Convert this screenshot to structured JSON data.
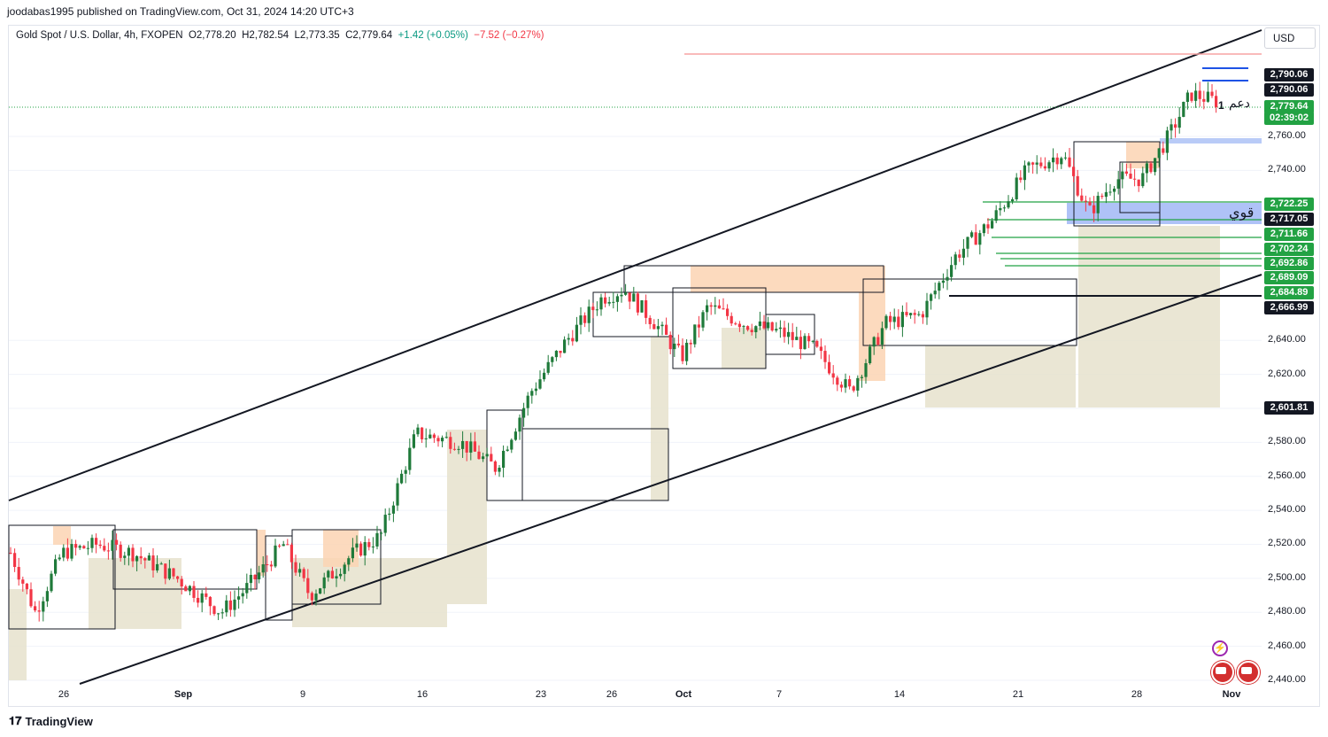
{
  "header": {
    "published_by": "joodabas1995 published on TradingView.com, Oct 31, 2024 14:20 UTC+3"
  },
  "legend": {
    "symbol": "Gold Spot / U.S. Dollar, 4h, FXOPEN",
    "open": "O2,778.20",
    "high": "H2,782.54",
    "low": "L2,773.35",
    "close": "C2,779.64",
    "change": "+1.42 (+0.05%)",
    "change2": "−7.52 (−0.27%)"
  },
  "currency": "USD",
  "footer": {
    "brand": "TradingView"
  },
  "annotations": {
    "support": "دعم",
    "strong": "قوي",
    "marker": "1"
  },
  "colors": {
    "up": "#089981",
    "down": "#f23645",
    "up_candle": "#1f7a3a",
    "zone_supply": "#fbd3b3",
    "zone_demand": "#e6e2cc",
    "blue_zone": "#6d8ff0",
    "green_level": "#22a243"
  },
  "chart_data": {
    "type": "candlestick",
    "title": "Gold Spot / U.S. Dollar, 4h, FXOPEN",
    "ylim": [
      2440,
      2810
    ],
    "y_ticks": [
      "2,440.00",
      "2,460.00",
      "2,480.00",
      "2,500.00",
      "2,520.00",
      "2,540.00",
      "2,560.00",
      "2,580.00",
      "2,600.00",
      "2,620.00",
      "2,640.00",
      "2,740.00",
      "2,760.00"
    ],
    "x_labels": [
      "26",
      "Sep",
      "9",
      "16",
      "23",
      "26",
      "Oct",
      "7",
      "14",
      "21",
      "28",
      "Nov"
    ],
    "price_badges": [
      {
        "value": "2,790.06",
        "style": "dark"
      },
      {
        "value": "2,790.06",
        "style": "dark"
      },
      {
        "value": "2,779.64",
        "style": "green"
      },
      {
        "value": "02:39:02",
        "style": "green"
      },
      {
        "value": "2,722.25",
        "style": "green"
      },
      {
        "value": "2,717.05",
        "style": "dark"
      },
      {
        "value": "2,711.66",
        "style": "green"
      },
      {
        "value": "2,702.24",
        "style": "green"
      },
      {
        "value": "2,692.86",
        "style": "green"
      },
      {
        "value": "2,689.09",
        "style": "green"
      },
      {
        "value": "2,684.89",
        "style": "green"
      },
      {
        "value": "2,666.99",
        "style": "dark"
      },
      {
        "value": "2,601.81",
        "style": "dark"
      }
    ],
    "last_price": 2779.64,
    "support_levels": [
      2722.25,
      2717.05,
      2711.66,
      2702.24,
      2692.86,
      2689.09,
      2684.89,
      2666.99,
      2601.81
    ]
  }
}
